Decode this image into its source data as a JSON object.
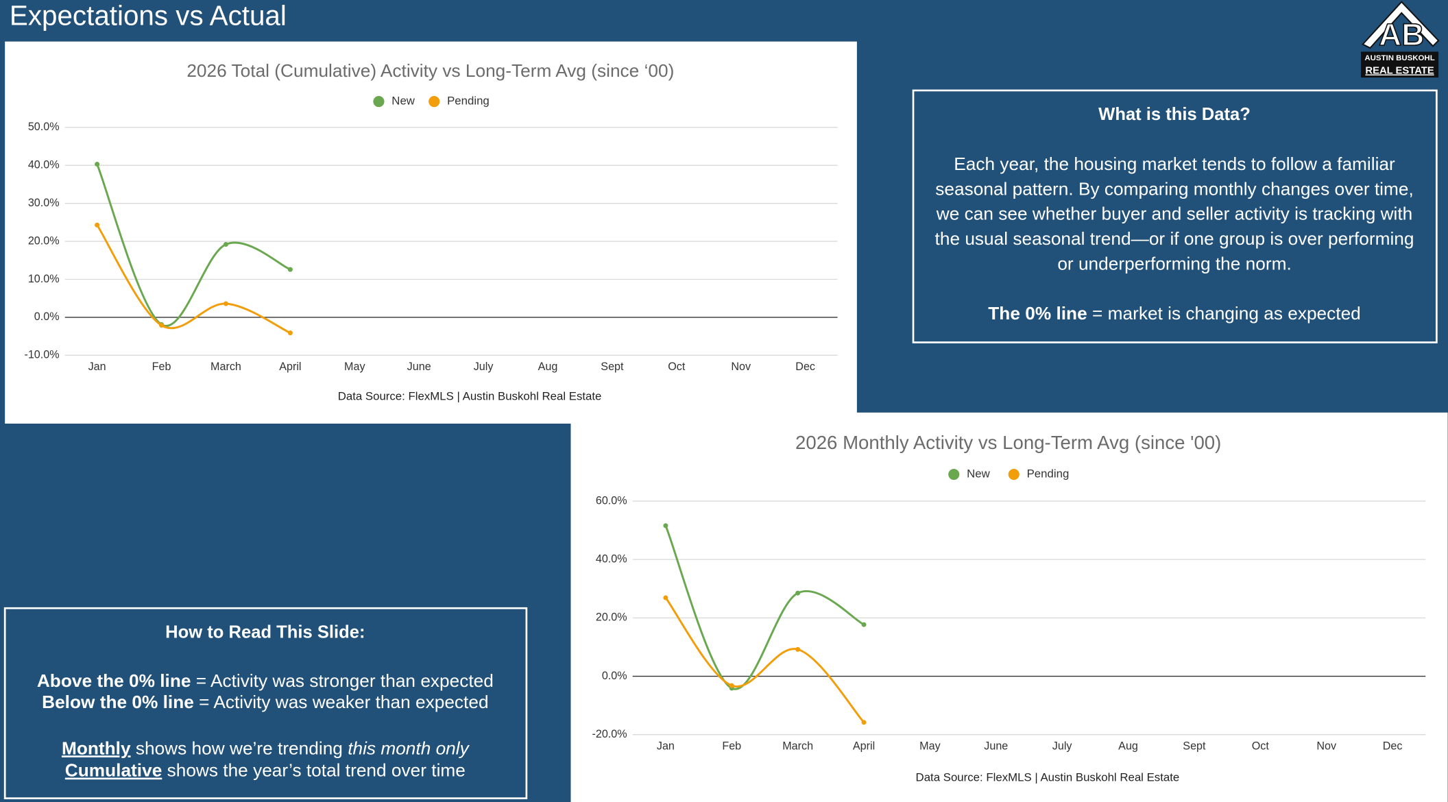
{
  "title": "Expectations vs Actual",
  "logo": {
    "mark": "AB",
    "line1": "AUSTIN BUSKOHL",
    "line2": "REAL ESTATE"
  },
  "info_box": {
    "heading": "What is this Data?",
    "body": [
      "Each year, the housing market tends to follow a familiar",
      "seasonal pattern. By comparing monthly changes over time,",
      "we can see whether buyer and seller activity is tracking with",
      "the usual seasonal trend—or if one group is over performing",
      "or underperforming the norm."
    ],
    "note_bold": "The 0% line",
    "note_rest": " = market is changing as expected"
  },
  "howto_box": {
    "heading": "How to Read This Slide:",
    "above_bold": "Above the 0% line",
    "above_rest": " = Activity was stronger than expected",
    "below_bold": "Below the 0% line",
    "below_rest": " = Activity was weaker than expected",
    "monthly_bold": "Monthly",
    "monthly_rest": " shows how we’re trending ",
    "monthly_italic": "this month only",
    "cumulative_bold": "Cumulative",
    "cumulative_rest": " shows the year’s total trend over time"
  },
  "chart_data": [
    {
      "type": "line",
      "title": "2026 Total (Cumulative) Activity vs Long-Term Avg (since ‘00)",
      "source": "Data Source: FlexMLS | Austin Buskohl Real Estate",
      "legend": "top",
      "grid": true,
      "smooth": true,
      "categories": [
        "Jan",
        "Feb",
        "March",
        "April",
        "May",
        "June",
        "July",
        "Aug",
        "Sept",
        "Oct",
        "Nov",
        "Dec"
      ],
      "series": [
        {
          "name": "New",
          "color": "#6aa84f",
          "values": [
            40.3,
            -1.9,
            19.2,
            12.6,
            null,
            null,
            null,
            null,
            null,
            null,
            null,
            null
          ]
        },
        {
          "name": "Pending",
          "color": "#f29d0a",
          "values": [
            24.3,
            -2.1,
            3.6,
            -4.1,
            null,
            null,
            null,
            null,
            null,
            null,
            null,
            null
          ]
        }
      ],
      "ylim": [
        -10,
        50
      ],
      "yticks": [
        {
          "value": -10,
          "label": "-10.0%"
        },
        {
          "value": 0,
          "label": "0.0%"
        },
        {
          "value": 10,
          "label": "10.0%"
        },
        {
          "value": 20,
          "label": "20.0%"
        },
        {
          "value": 30,
          "label": "30.0%"
        },
        {
          "value": 40,
          "label": "40.0%"
        },
        {
          "value": 50,
          "label": "50.0%"
        }
      ]
    },
    {
      "type": "line",
      "title": "2026 Monthly Activity vs Long-Term Avg (since '00)",
      "source": "Data Source: FlexMLS | Austin Buskohl Real Estate",
      "legend": "top",
      "grid": true,
      "smooth": true,
      "categories": [
        "Jan",
        "Feb",
        "March",
        "April",
        "May",
        "June",
        "July",
        "Aug",
        "Sept",
        "Oct",
        "Nov",
        "Dec"
      ],
      "series": [
        {
          "name": "New",
          "color": "#6aa84f",
          "values": [
            51.6,
            -4.1,
            28.5,
            17.7,
            null,
            null,
            null,
            null,
            null,
            null,
            null,
            null
          ]
        },
        {
          "name": "Pending",
          "color": "#f29d0a",
          "values": [
            26.9,
            -3.2,
            9.2,
            -15.8,
            null,
            null,
            null,
            null,
            null,
            null,
            null,
            null
          ]
        }
      ],
      "ylim": [
        -20,
        60
      ],
      "yticks": [
        {
          "value": -20,
          "label": "-20.0%"
        },
        {
          "value": 0,
          "label": "0.0%"
        },
        {
          "value": 20,
          "label": "20.0%"
        },
        {
          "value": 40,
          "label": "40.0%"
        },
        {
          "value": 60,
          "label": "60.0%"
        }
      ]
    }
  ]
}
